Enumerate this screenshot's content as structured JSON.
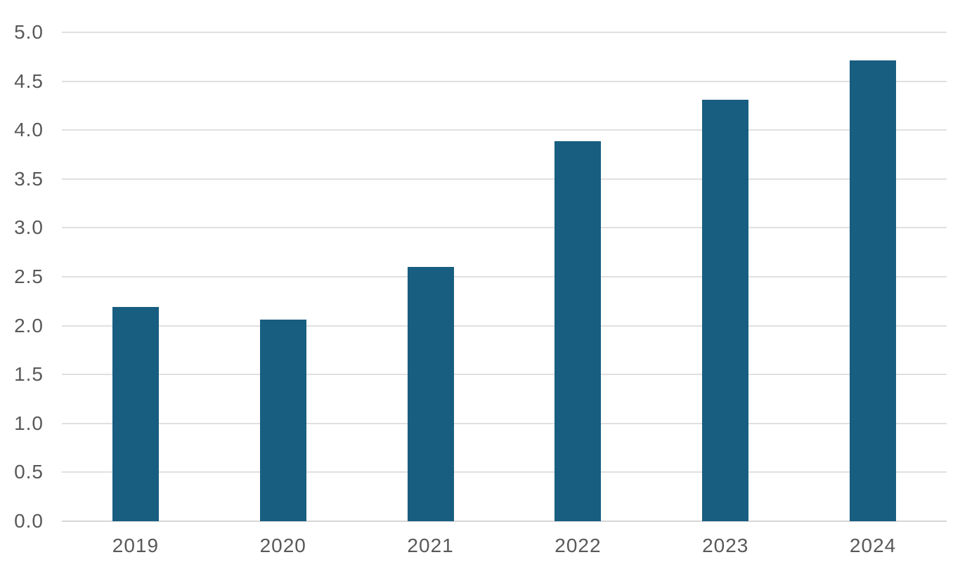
{
  "chart_data": {
    "type": "bar",
    "title": "",
    "xlabel": "",
    "ylabel": "",
    "categories": [
      "2019",
      "2020",
      "2021",
      "2022",
      "2023",
      "2024"
    ],
    "values": [
      2.19,
      2.06,
      2.6,
      3.89,
      4.31,
      4.71
    ],
    "ylim": [
      0,
      5
    ],
    "ytick_step": 0.5,
    "yticks": [
      "0.0",
      "0.5",
      "1.0",
      "1.5",
      "2.0",
      "2.5",
      "3.0",
      "3.5",
      "4.0",
      "4.5",
      "5.0"
    ],
    "grid": "horizontal",
    "legend": "none",
    "bar_color": "#185E80",
    "gridline_color": "#E0E0E0",
    "axis_line_color": "#D6D6D6",
    "tick_label_color": "#595959",
    "background_color": "#FFFFFF"
  }
}
